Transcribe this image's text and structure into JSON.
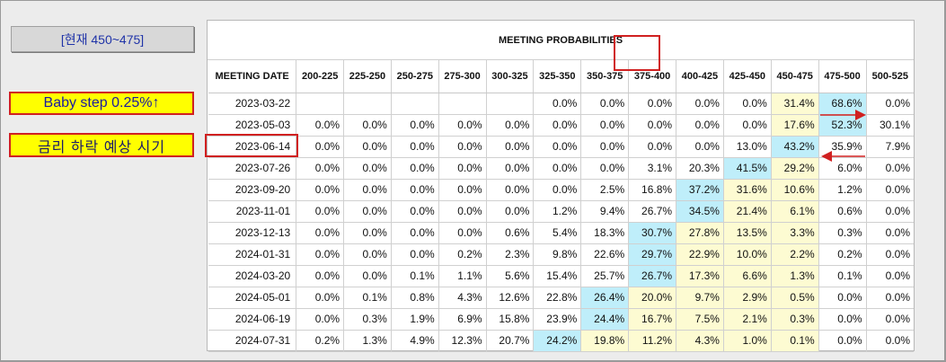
{
  "labels": {
    "current_range": "[현재 450~475]",
    "baby_step": "Baby step 0.25%↑",
    "rate_cut": "금리 하락 예상 시기"
  },
  "colors": {
    "blue_cell": "#bfeefa",
    "yellow_cell": "#fdfbd2",
    "annotation_red": "#d02020",
    "annotation_yellow": "#ffff00"
  },
  "table": {
    "title": "MEETING PROBABILITIES",
    "headers": [
      "MEETING DATE",
      "200-225",
      "225-250",
      "250-275",
      "275-300",
      "300-325",
      "325-350",
      "350-375",
      "375-400",
      "400-425",
      "425-450",
      "450-475",
      "475-500",
      "500-525"
    ],
    "rows": [
      {
        "date": "2023-03-22",
        "cells": [
          {
            "v": ""
          },
          {
            "v": ""
          },
          {
            "v": ""
          },
          {
            "v": ""
          },
          {
            "v": ""
          },
          {
            "v": "0.0%"
          },
          {
            "v": "0.0%"
          },
          {
            "v": "0.0%"
          },
          {
            "v": "0.0%"
          },
          {
            "v": "0.0%"
          },
          {
            "v": "31.4%",
            "c": "yellow"
          },
          {
            "v": "68.6%",
            "c": "blue"
          },
          {
            "v": "0.0%"
          }
        ]
      },
      {
        "date": "2023-05-03",
        "cells": [
          {
            "v": "0.0%"
          },
          {
            "v": "0.0%"
          },
          {
            "v": "0.0%"
          },
          {
            "v": "0.0%"
          },
          {
            "v": "0.0%"
          },
          {
            "v": "0.0%"
          },
          {
            "v": "0.0%"
          },
          {
            "v": "0.0%"
          },
          {
            "v": "0.0%"
          },
          {
            "v": "0.0%"
          },
          {
            "v": "17.6%",
            "c": "yellow"
          },
          {
            "v": "52.3%",
            "c": "blue"
          },
          {
            "v": "30.1%"
          }
        ]
      },
      {
        "date": "2023-06-14",
        "cells": [
          {
            "v": "0.0%"
          },
          {
            "v": "0.0%"
          },
          {
            "v": "0.0%"
          },
          {
            "v": "0.0%"
          },
          {
            "v": "0.0%"
          },
          {
            "v": "0.0%"
          },
          {
            "v": "0.0%"
          },
          {
            "v": "0.0%"
          },
          {
            "v": "0.0%"
          },
          {
            "v": "13.0%"
          },
          {
            "v": "43.2%",
            "c": "blue"
          },
          {
            "v": "35.9%"
          },
          {
            "v": "7.9%"
          }
        ]
      },
      {
        "date": "2023-07-26",
        "cells": [
          {
            "v": "0.0%"
          },
          {
            "v": "0.0%"
          },
          {
            "v": "0.0%"
          },
          {
            "v": "0.0%"
          },
          {
            "v": "0.0%"
          },
          {
            "v": "0.0%"
          },
          {
            "v": "0.0%"
          },
          {
            "v": "3.1%"
          },
          {
            "v": "20.3%"
          },
          {
            "v": "41.5%",
            "c": "blue"
          },
          {
            "v": "29.2%",
            "c": "yellow"
          },
          {
            "v": "6.0%"
          },
          {
            "v": "0.0%"
          }
        ]
      },
      {
        "date": "2023-09-20",
        "cells": [
          {
            "v": "0.0%"
          },
          {
            "v": "0.0%"
          },
          {
            "v": "0.0%"
          },
          {
            "v": "0.0%"
          },
          {
            "v": "0.0%"
          },
          {
            "v": "0.0%"
          },
          {
            "v": "2.5%"
          },
          {
            "v": "16.8%"
          },
          {
            "v": "37.2%",
            "c": "blue"
          },
          {
            "v": "31.6%",
            "c": "yellow"
          },
          {
            "v": "10.6%",
            "c": "yellow"
          },
          {
            "v": "1.2%"
          },
          {
            "v": "0.0%"
          }
        ]
      },
      {
        "date": "2023-11-01",
        "cells": [
          {
            "v": "0.0%"
          },
          {
            "v": "0.0%"
          },
          {
            "v": "0.0%"
          },
          {
            "v": "0.0%"
          },
          {
            "v": "0.0%"
          },
          {
            "v": "1.2%"
          },
          {
            "v": "9.4%"
          },
          {
            "v": "26.7%"
          },
          {
            "v": "34.5%",
            "c": "blue"
          },
          {
            "v": "21.4%",
            "c": "yellow"
          },
          {
            "v": "6.1%",
            "c": "yellow"
          },
          {
            "v": "0.6%"
          },
          {
            "v": "0.0%"
          }
        ]
      },
      {
        "date": "2023-12-13",
        "cells": [
          {
            "v": "0.0%"
          },
          {
            "v": "0.0%"
          },
          {
            "v": "0.0%"
          },
          {
            "v": "0.0%"
          },
          {
            "v": "0.6%"
          },
          {
            "v": "5.4%"
          },
          {
            "v": "18.3%"
          },
          {
            "v": "30.7%",
            "c": "blue"
          },
          {
            "v": "27.8%",
            "c": "yellow"
          },
          {
            "v": "13.5%",
            "c": "yellow"
          },
          {
            "v": "3.3%",
            "c": "yellow"
          },
          {
            "v": "0.3%"
          },
          {
            "v": "0.0%"
          }
        ]
      },
      {
        "date": "2024-01-31",
        "cells": [
          {
            "v": "0.0%"
          },
          {
            "v": "0.0%"
          },
          {
            "v": "0.0%"
          },
          {
            "v": "0.2%"
          },
          {
            "v": "2.3%"
          },
          {
            "v": "9.8%"
          },
          {
            "v": "22.6%"
          },
          {
            "v": "29.7%",
            "c": "blue"
          },
          {
            "v": "22.9%",
            "c": "yellow"
          },
          {
            "v": "10.0%",
            "c": "yellow"
          },
          {
            "v": "2.2%",
            "c": "yellow"
          },
          {
            "v": "0.2%"
          },
          {
            "v": "0.0%"
          }
        ]
      },
      {
        "date": "2024-03-20",
        "cells": [
          {
            "v": "0.0%"
          },
          {
            "v": "0.0%"
          },
          {
            "v": "0.1%"
          },
          {
            "v": "1.1%"
          },
          {
            "v": "5.6%"
          },
          {
            "v": "15.4%"
          },
          {
            "v": "25.7%"
          },
          {
            "v": "26.7%",
            "c": "blue"
          },
          {
            "v": "17.3%",
            "c": "yellow"
          },
          {
            "v": "6.6%",
            "c": "yellow"
          },
          {
            "v": "1.3%",
            "c": "yellow"
          },
          {
            "v": "0.1%"
          },
          {
            "v": "0.0%"
          }
        ]
      },
      {
        "date": "2024-05-01",
        "cells": [
          {
            "v": "0.0%"
          },
          {
            "v": "0.1%"
          },
          {
            "v": "0.8%"
          },
          {
            "v": "4.3%"
          },
          {
            "v": "12.6%"
          },
          {
            "v": "22.8%"
          },
          {
            "v": "26.4%",
            "c": "blue"
          },
          {
            "v": "20.0%",
            "c": "yellow"
          },
          {
            "v": "9.7%",
            "c": "yellow"
          },
          {
            "v": "2.9%",
            "c": "yellow"
          },
          {
            "v": "0.5%",
            "c": "yellow"
          },
          {
            "v": "0.0%"
          },
          {
            "v": "0.0%"
          }
        ]
      },
      {
        "date": "2024-06-19",
        "cells": [
          {
            "v": "0.0%"
          },
          {
            "v": "0.3%"
          },
          {
            "v": "1.9%"
          },
          {
            "v": "6.9%"
          },
          {
            "v": "15.8%"
          },
          {
            "v": "23.9%"
          },
          {
            "v": "24.4%",
            "c": "blue"
          },
          {
            "v": "16.7%",
            "c": "yellow"
          },
          {
            "v": "7.5%",
            "c": "yellow"
          },
          {
            "v": "2.1%",
            "c": "yellow"
          },
          {
            "v": "0.3%",
            "c": "yellow"
          },
          {
            "v": "0.0%"
          },
          {
            "v": "0.0%"
          }
        ]
      },
      {
        "date": "2024-07-31",
        "cells": [
          {
            "v": "0.2%"
          },
          {
            "v": "1.3%"
          },
          {
            "v": "4.9%"
          },
          {
            "v": "12.3%"
          },
          {
            "v": "20.7%"
          },
          {
            "v": "24.2%",
            "c": "blue"
          },
          {
            "v": "19.8%",
            "c": "yellow"
          },
          {
            "v": "11.2%",
            "c": "yellow"
          },
          {
            "v": "4.3%",
            "c": "yellow"
          },
          {
            "v": "1.0%",
            "c": "yellow"
          },
          {
            "v": "0.1%",
            "c": "yellow"
          },
          {
            "v": "0.0%"
          },
          {
            "v": "0.0%"
          }
        ]
      }
    ]
  }
}
